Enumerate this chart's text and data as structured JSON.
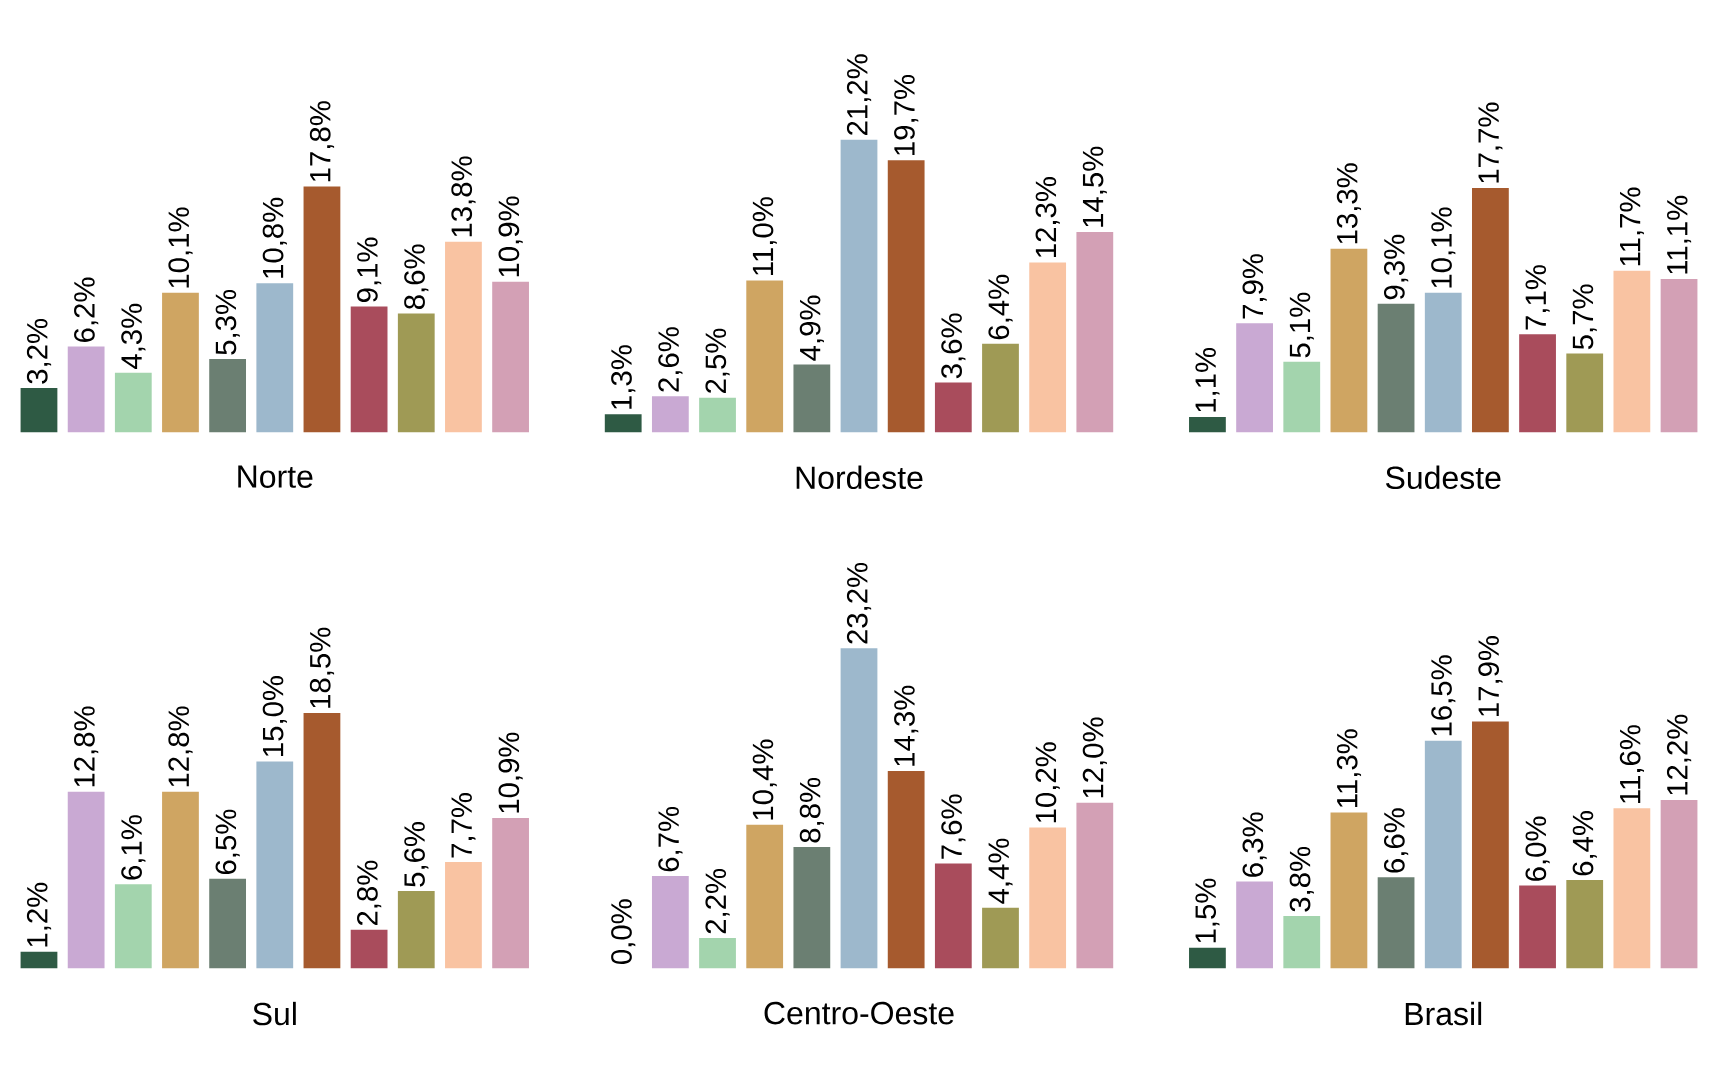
{
  "chart_data": [
    {
      "type": "bar",
      "xlabel": "Norte",
      "categories": [
        null,
        null,
        null,
        null,
        null,
        null,
        null,
        null,
        null,
        null,
        null
      ],
      "values": [
        3.2,
        6.2,
        4.3,
        10.1,
        5.3,
        10.8,
        17.8,
        9.1,
        8.6,
        13.8,
        10.9
      ],
      "value_labels": [
        "3,2%",
        "6,2%",
        "4,3%",
        "10,1%",
        "5,3%",
        "10,8%",
        "17,8%",
        "9,1%",
        "8,6%",
        "13,8%",
        "10,9%"
      ],
      "colors": [
        "#2e5a44",
        "#c9a9d3",
        "#a3d4ad",
        "#cfa562",
        "#6b7f72",
        "#9db8cc",
        "#a65a2e",
        "#a94c5c",
        "#9f9a55",
        "#f9c3a2",
        "#d3a0b5"
      ]
    },
    {
      "type": "bar",
      "xlabel": "Nordeste",
      "categories": [
        null,
        null,
        null,
        null,
        null,
        null,
        null,
        null,
        null,
        null,
        null
      ],
      "values": [
        1.3,
        2.6,
        2.5,
        11.0,
        4.9,
        21.2,
        19.7,
        3.6,
        6.4,
        12.3,
        14.5
      ],
      "value_labels": [
        "1,3%",
        "2,6%",
        "2,5%",
        "11,0%",
        "4,9%",
        "21,2%",
        "19,7%",
        "3,6%",
        "6,4%",
        "12,3%",
        "14,5%"
      ],
      "colors": [
        "#2e5a44",
        "#c9a9d3",
        "#a3d4ad",
        "#cfa562",
        "#6b7f72",
        "#9db8cc",
        "#a65a2e",
        "#a94c5c",
        "#9f9a55",
        "#f9c3a2",
        "#d3a0b5"
      ]
    },
    {
      "type": "bar",
      "xlabel": "Sudeste",
      "categories": [
        null,
        null,
        null,
        null,
        null,
        null,
        null,
        null,
        null,
        null,
        null
      ],
      "values": [
        1.1,
        7.9,
        5.1,
        13.3,
        9.3,
        10.1,
        17.7,
        7.1,
        5.7,
        11.7,
        11.1
      ],
      "value_labels": [
        "1,1%",
        "7,9%",
        "5,1%",
        "13,3%",
        "9,3%",
        "10,1%",
        "17,7%",
        "7,1%",
        "5,7%",
        "11,7%",
        "11,1%"
      ],
      "colors": [
        "#2e5a44",
        "#c9a9d3",
        "#a3d4ad",
        "#cfa562",
        "#6b7f72",
        "#9db8cc",
        "#a65a2e",
        "#a94c5c",
        "#9f9a55",
        "#f9c3a2",
        "#d3a0b5"
      ]
    },
    {
      "type": "bar",
      "xlabel": "Sul",
      "categories": [
        null,
        null,
        null,
        null,
        null,
        null,
        null,
        null,
        null,
        null,
        null
      ],
      "values": [
        1.2,
        12.8,
        6.1,
        12.8,
        6.5,
        15.0,
        18.5,
        2.8,
        5.6,
        7.7,
        10.9
      ],
      "value_labels": [
        "1,2%",
        "12,8%",
        "6,1%",
        "12,8%",
        "6,5%",
        "15,0%",
        "18,5%",
        "2,8%",
        "5,6%",
        "7,7%",
        "10,9%"
      ],
      "colors": [
        "#2e5a44",
        "#c9a9d3",
        "#a3d4ad",
        "#cfa562",
        "#6b7f72",
        "#9db8cc",
        "#a65a2e",
        "#a94c5c",
        "#9f9a55",
        "#f9c3a2",
        "#d3a0b5"
      ]
    },
    {
      "type": "bar",
      "xlabel": "Centro-Oeste",
      "categories": [
        null,
        null,
        null,
        null,
        null,
        null,
        null,
        null,
        null,
        null,
        null
      ],
      "values": [
        0.0,
        6.7,
        2.2,
        10.4,
        8.8,
        23.2,
        14.3,
        7.6,
        4.4,
        10.2,
        12.0
      ],
      "value_labels": [
        "0,0%",
        "6,7%",
        "2,2%",
        "10,4%",
        "8,8%",
        "23,2%",
        "14,3%",
        "7,6%",
        "4,4%",
        "10,2%",
        "12,0%"
      ],
      "colors": [
        "#2e5a44",
        "#c9a9d3",
        "#a3d4ad",
        "#cfa562",
        "#6b7f72",
        "#9db8cc",
        "#a65a2e",
        "#a94c5c",
        "#9f9a55",
        "#f9c3a2",
        "#d3a0b5"
      ]
    },
    {
      "type": "bar",
      "xlabel": "Brasil",
      "categories": [
        null,
        null,
        null,
        null,
        null,
        null,
        null,
        null,
        null,
        null,
        null
      ],
      "values": [
        1.5,
        6.3,
        3.8,
        11.3,
        6.6,
        16.5,
        17.9,
        6.0,
        6.4,
        11.6,
        12.2
      ],
      "value_labels": [
        "1,5%",
        "6,3%",
        "3,8%",
        "11,3%",
        "6,6%",
        "16,5%",
        "17,9%",
        "6,0%",
        "6,4%",
        "11,6%",
        "12,2%"
      ],
      "colors": [
        "#2e5a44",
        "#c9a9d3",
        "#a3d4ad",
        "#cfa562",
        "#6b7f72",
        "#9db8cc",
        "#a65a2e",
        "#a94c5c",
        "#9f9a55",
        "#f9c3a2",
        "#d3a0b5"
      ]
    }
  ]
}
